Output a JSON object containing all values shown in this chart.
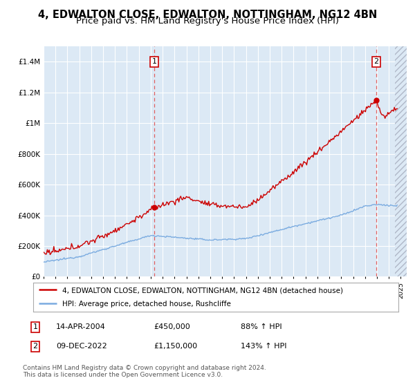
{
  "title": "4, EDWALTON CLOSE, EDWALTON, NOTTINGHAM, NG12 4BN",
  "subtitle": "Price paid vs. HM Land Registry's House Price Index (HPI)",
  "ylim": [
    0,
    1500000
  ],
  "yticks": [
    0,
    200000,
    400000,
    600000,
    800000,
    1000000,
    1200000,
    1400000
  ],
  "ytick_labels": [
    "£0",
    "£200K",
    "£400K",
    "£600K",
    "£800K",
    "£1M",
    "£1.2M",
    "£1.4M"
  ],
  "xlim": [
    1995,
    2025.5
  ],
  "red_line_color": "#cc0000",
  "blue_line_color": "#7aabe0",
  "plot_bg_color": "#dce9f5",
  "grid_color": "#ffffff",
  "dashed_line_color": "#e06060",
  "marker1_x": 2004.29,
  "marker1_y": 450000,
  "marker2_x": 2022.94,
  "marker2_y": 1150000,
  "sale1_date": "14-APR-2004",
  "sale1_price": "£450,000",
  "sale1_hpi": "88% ↑ HPI",
  "sale2_date": "09-DEC-2022",
  "sale2_price": "£1,150,000",
  "sale2_hpi": "143% ↑ HPI",
  "legend_label_red": "4, EDWALTON CLOSE, EDWALTON, NOTTINGHAM, NG12 4BN (detached house)",
  "legend_label_blue": "HPI: Average price, detached house, Rushcliffe",
  "footnote": "Contains HM Land Registry data © Crown copyright and database right 2024.\nThis data is licensed under the Open Government Licence v3.0."
}
